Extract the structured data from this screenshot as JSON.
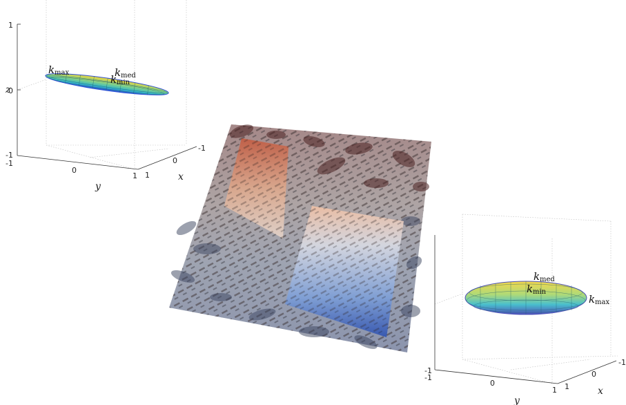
{
  "left_panel": {
    "z_ticks": [
      "1",
      "0",
      "-1"
    ],
    "z_label": "z",
    "y_ticks": [
      "-1",
      "0",
      "1"
    ],
    "y_label": "y",
    "x_ticks": [
      "-1",
      "0",
      "1"
    ],
    "x_label": "x",
    "labels": [
      {
        "k": "k",
        "sub": "max"
      },
      {
        "k": "k",
        "sub": "med"
      },
      {
        "k": "k",
        "sub": "min"
      }
    ]
  },
  "right_panel": {
    "z_ticks": [
      "-1"
    ],
    "y_ticks": [
      "-1",
      "0",
      "1"
    ],
    "y_label": "y",
    "x_ticks": [
      "-1",
      "0",
      "1"
    ],
    "x_label": "x",
    "labels": [
      {
        "k": "k",
        "sub": "med"
      },
      {
        "k": "k",
        "sub": "min"
      },
      {
        "k": "k",
        "sub": "max"
      }
    ]
  },
  "colors": {
    "top_red": "#b8553b",
    "mid_peach": "#e9c4ae",
    "bottom_blue": "#3556a8",
    "dark_blob": "#5a2a2a",
    "ellipsoid_yellow": "#f2d43a",
    "ellipsoid_cyan": "#3fc1c9",
    "ellipsoid_blue": "#2d4fd6"
  }
}
